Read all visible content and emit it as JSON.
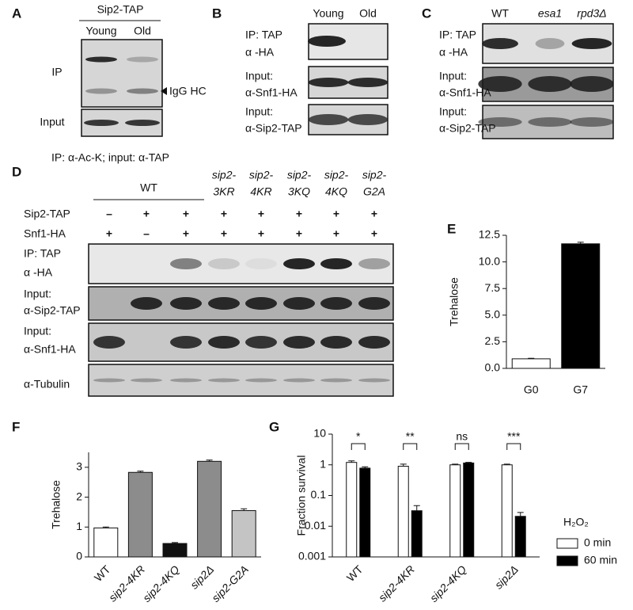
{
  "panels": {
    "A": {
      "label": "A",
      "header": "Sip2-TAP",
      "lanes": [
        "Young",
        "Old"
      ],
      "rows": [
        "IP",
        "Input"
      ],
      "annotation": "IgG HC",
      "footnote": "IP: α-Ac-K; input: α-TAP"
    },
    "B": {
      "label": "B",
      "lanes": [
        "Young",
        "Old"
      ],
      "rows": [
        [
          "IP: TAP",
          "α -HA"
        ],
        [
          "Input:",
          "α-Snf1-HA"
        ],
        [
          "Input:",
          "α-Sip2-TAP"
        ]
      ]
    },
    "C": {
      "label": "C",
      "lanes": [
        "WT",
        "esa1",
        "rpd3Δ"
      ],
      "rows": [
        [
          "IP: TAP",
          "α -HA"
        ],
        [
          "Input:",
          "α-Snf1-HA"
        ],
        [
          "Input:",
          "α-Sip2-TAP"
        ]
      ]
    },
    "D": {
      "label": "D",
      "group": "WT",
      "mutants": [
        [
          "sip2-",
          "3KR"
        ],
        [
          "sip2-",
          "4KR"
        ],
        [
          "sip2-",
          "3KQ"
        ],
        [
          "sip2-",
          "4KQ"
        ],
        [
          "sip2-",
          "G2A"
        ]
      ],
      "conditions": [
        {
          "name": "Sip2-TAP",
          "signs": [
            "–",
            "+",
            "+",
            "+",
            "+",
            "+",
            "+",
            "+"
          ]
        },
        {
          "name": "Snf1-HA",
          "signs": [
            "+",
            "–",
            "+",
            "+",
            "+",
            "+",
            "+",
            "+"
          ]
        }
      ],
      "rows": [
        [
          "IP: TAP",
          "α -HA"
        ],
        [
          "Input:",
          "α-Sip2-TAP"
        ],
        [
          "Input:",
          "α-Snf1-HA"
        ],
        [
          "α-Tubulin"
        ]
      ]
    }
  },
  "chart_data": [
    {
      "type": "bar",
      "panel": "E",
      "ylabel": "Trehalose",
      "categories": [
        "G0",
        "G7"
      ],
      "values": [
        0.9,
        11.7
      ],
      "errors": [
        0.05,
        0.15
      ],
      "colors": [
        "#ffffff",
        "#000000"
      ],
      "ylim": [
        0,
        12.5
      ],
      "yticks": [
        {
          "value": 0,
          "label": "0.0"
        },
        2.5,
        {
          "value": 5,
          "label": "5.0"
        },
        7.5,
        {
          "value": 10,
          "label": "10.0"
        },
        12.5
      ]
    },
    {
      "type": "bar",
      "panel": "F",
      "ylabel": "Trehalose",
      "categories": [
        "WT",
        "sip2-4KR",
        "sip2-4KQ",
        "sip2Δ",
        "sip2-G2A"
      ],
      "values": [
        0.97,
        2.83,
        0.45,
        3.2,
        1.55
      ],
      "errors": [
        0.03,
        0.04,
        0.03,
        0.04,
        0.06
      ],
      "colors": [
        "#ffffff",
        "#8c8c8c",
        "#111111",
        "#8c8c8c",
        "#c4c4c4"
      ],
      "ylim": [
        0,
        3.5
      ],
      "yticks": [
        0,
        1,
        2,
        3
      ]
    },
    {
      "type": "grouped_bar",
      "panel": "G",
      "ylabel": "Fraction survival",
      "log": true,
      "categories": [
        "WT",
        "sip2-4KR",
        "sip2-4KQ",
        "sip2Δ"
      ],
      "legend_title": "H₂O₂",
      "series": [
        {
          "name": "0 min",
          "color": "#ffffff",
          "values": [
            1.2,
            0.9,
            1.0,
            1.0
          ],
          "errors": [
            0.15,
            0.15,
            0.05,
            0.05
          ]
        },
        {
          "name": "60 min",
          "color": "#000000",
          "values": [
            0.78,
            0.032,
            1.15,
            0.021
          ],
          "errors": [
            0.08,
            0.015,
            0.05,
            0.007
          ]
        }
      ],
      "significance": [
        "*",
        "**",
        "ns",
        "***"
      ],
      "ylim": [
        0.001,
        10
      ],
      "yticks": [
        0.001,
        0.01,
        0.1,
        1,
        10
      ]
    }
  ]
}
